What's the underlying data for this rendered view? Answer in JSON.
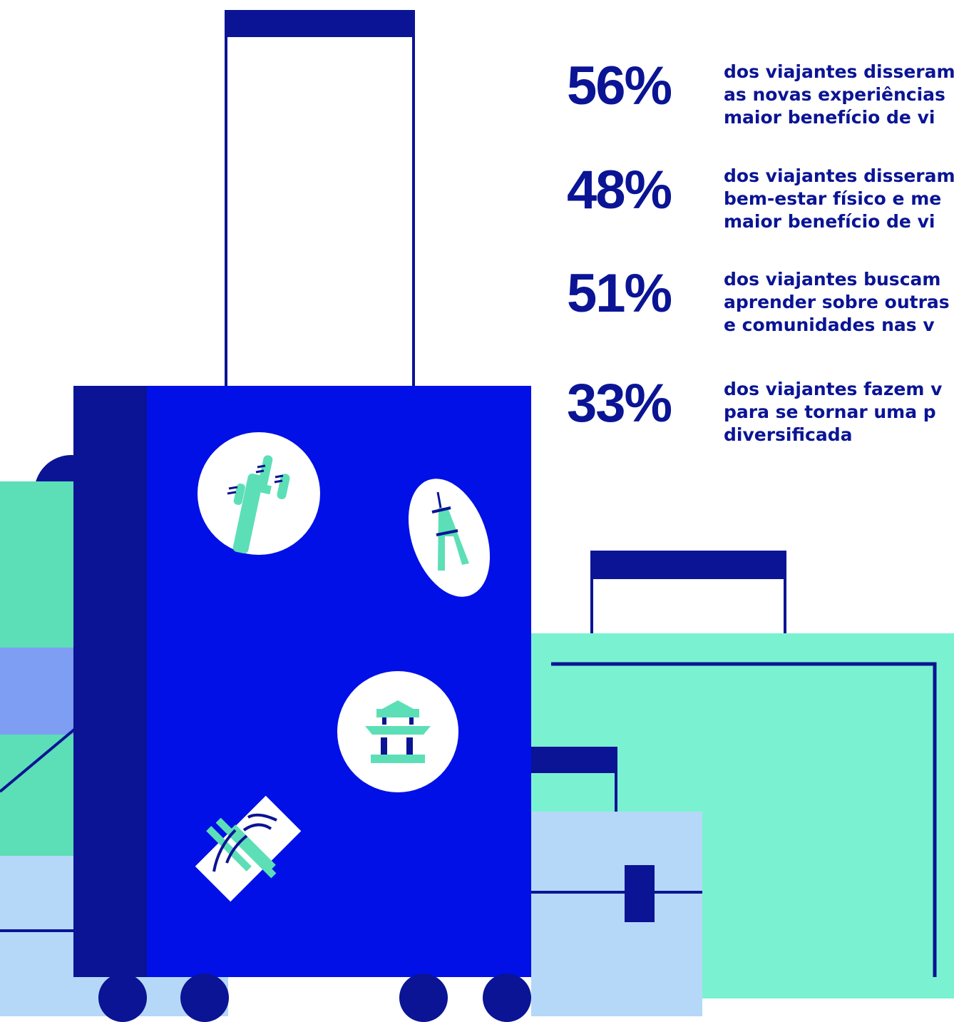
{
  "stats": [
    {
      "value": "56%",
      "text_lines": [
        "dos viajantes disseram",
        "as novas experiências",
        "maior benefício de vi"
      ]
    },
    {
      "value": "48%",
      "text_lines": [
        "dos viajantes disseram",
        "bem-estar físico e me",
        "maior benefício de vi"
      ]
    },
    {
      "value": "51%",
      "text_lines": [
        "dos viajantes buscam",
        "aprender sobre outras",
        "e comunidades nas v"
      ]
    },
    {
      "value": "33%",
      "text_lines": [
        "dos viajantes fazem v",
        "para se tornar uma p",
        "diversificada"
      ]
    }
  ],
  "stickers": [
    "cactus-icon",
    "eiffel-tower-icon",
    "pagoda-icon",
    "bridge-icon"
  ],
  "colors": {
    "navy": "#0a1494",
    "blue": "#0010e6",
    "mint": "#7af2d1",
    "mint_dark": "#5cdfb7",
    "periwinkle": "#7d9ef2",
    "pale_blue": "#b5d8f9",
    "white": "#ffffff"
  }
}
